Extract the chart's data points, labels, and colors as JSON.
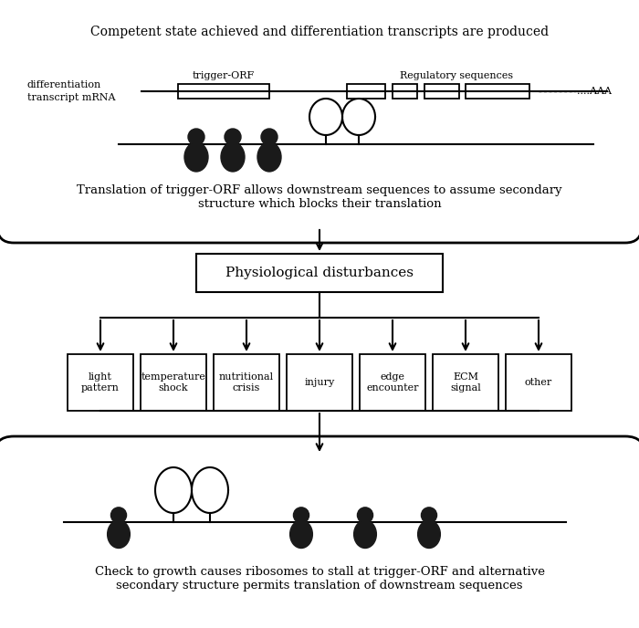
{
  "bg_color": "#ffffff",
  "top_box_title": "Competent state achieved and differentiation transcripts are produced",
  "top_box_caption": "Translation of trigger-ORF allows downstream sequences to assume secondary\nstructure which blocks their translation",
  "middle_box_text": "Physiological disturbances",
  "leaf_boxes": [
    "light\npattern",
    "temperature\nshock",
    "nutritional\ncrisis",
    "injury",
    "edge\nencounter",
    "ECM\nsignal",
    "other"
  ],
  "bottom_box_caption": "Check to growth causes ribosomes to stall at trigger-ORF and alternative\nsecondary structure permits translation of downstream sequences",
  "mrna_label": "differentiation\ntranscript mRNA",
  "trigger_orf_label": "trigger-ORF",
  "regulatory_label": "Regulatory sequences",
  "aaa_label": "....AAA"
}
